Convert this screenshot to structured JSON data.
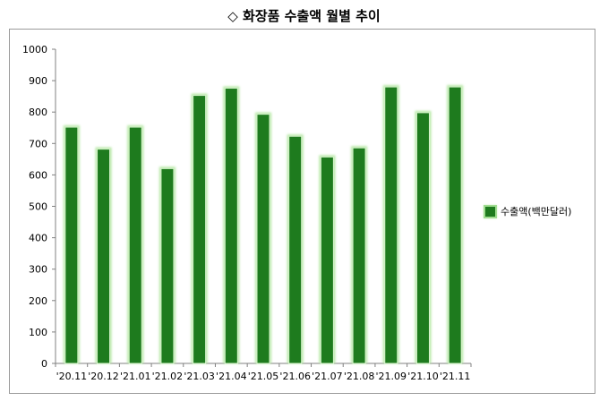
{
  "title": "◇ 화장품 수출액 월별 추이",
  "colors": {
    "bar_fill": "#1e7b1e",
    "bar_glow": "#b7e8a6",
    "axis": "#808080"
  },
  "chart_data": {
    "type": "bar",
    "title": "◇ 화장품 수출액 월별 추이",
    "categories": [
      "'20.11",
      "'20.12",
      "'21.01",
      "'21.02",
      "'21.03",
      "'21.04",
      "'21.05",
      "'21.06",
      "'21.07",
      "'21.08",
      "'21.09",
      "'21.10",
      "'21.11"
    ],
    "series": [
      {
        "name": "수출액(백만달러)",
        "values": [
          752,
          682,
          752,
          620,
          853,
          876,
          793,
          723,
          657,
          686,
          880,
          798,
          880
        ]
      }
    ],
    "yticks": [
      "0",
      "100",
      "200",
      "300",
      "400",
      "500",
      "600",
      "700",
      "800",
      "900",
      "1000"
    ],
    "ylim": [
      0,
      1000
    ],
    "xlabel": "",
    "ylabel": "",
    "grid": false,
    "legend_position": "right"
  }
}
